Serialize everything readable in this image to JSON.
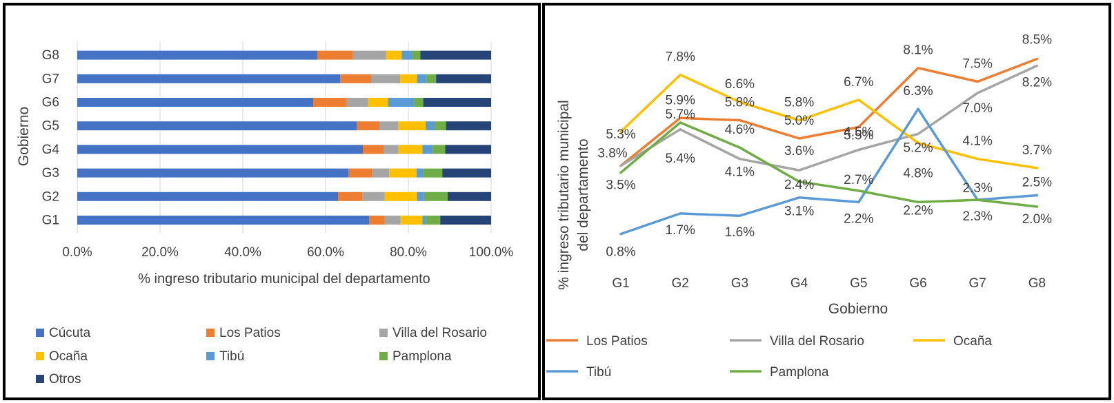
{
  "chart_data": [
    {
      "type": "bar",
      "orientation": "horizontal",
      "stacked": true,
      "categories": [
        "G1",
        "G2",
        "G3",
        "G4",
        "G5",
        "G6",
        "G7",
        "G8"
      ],
      "xlabel": "% ingreso tributario municipal del departamento",
      "ylabel": "Gobierno",
      "xlim": [
        0,
        100
      ],
      "xticks": [
        "0.0%",
        "20.0%",
        "40.0%",
        "60.0%",
        "80.0%",
        "100.0%"
      ],
      "legend_position": "bottom",
      "series": [
        {
          "name": "Cúcuta",
          "color": "#4472C4",
          "values": [
            70.5,
            63.0,
            65.5,
            69.0,
            67.5,
            57.0,
            63.5,
            58.0
          ]
        },
        {
          "name": "Los Patios",
          "color": "#ED7D31",
          "values": [
            3.8,
            5.9,
            5.8,
            5.0,
            5.5,
            8.1,
            7.5,
            8.5
          ]
        },
        {
          "name": "Villa del Rosario",
          "color": "#A5A5A5",
          "values": [
            3.8,
            5.4,
            4.1,
            3.6,
            4.5,
            5.2,
            7.0,
            8.2
          ]
        },
        {
          "name": "Ocaña",
          "color": "#FFC000",
          "values": [
            5.3,
            7.8,
            6.6,
            5.8,
            6.7,
            4.8,
            4.1,
            3.7
          ]
        },
        {
          "name": "Tibú",
          "color": "#5B9BD5",
          "values": [
            0.8,
            1.7,
            1.6,
            2.4,
            2.2,
            6.3,
            2.3,
            2.5
          ]
        },
        {
          "name": "Pamplona",
          "color": "#70AD47",
          "values": [
            3.5,
            5.7,
            4.6,
            3.1,
            2.7,
            2.2,
            2.3,
            2.0
          ]
        },
        {
          "name": "Otros",
          "color": "#264478",
          "values": [
            12.3,
            10.5,
            11.8,
            11.1,
            10.9,
            16.4,
            13.3,
            17.1
          ]
        }
      ]
    },
    {
      "type": "line",
      "x": [
        "G1",
        "G2",
        "G3",
        "G4",
        "G5",
        "G6",
        "G7",
        "G8"
      ],
      "xlabel": "Gobierno",
      "ylabel": "% ingreso tributario municipal del departamento",
      "ylim": [
        0,
        9
      ],
      "legend_position": "bottom",
      "series": [
        {
          "name": "Los Patios",
          "color": "#ED7D31",
          "values": [
            3.8,
            5.9,
            5.8,
            5.0,
            5.5,
            8.1,
            7.5,
            8.5
          ],
          "labels": [
            "",
            "5.9%",
            "5.8%",
            "5.0%",
            "5.5%",
            "8.1%",
            "7.5%",
            "8.5%"
          ]
        },
        {
          "name": "Villa del Rosario",
          "color": "#A5A5A5",
          "values": [
            3.8,
            5.4,
            4.1,
            3.6,
            4.5,
            5.2,
            7.0,
            8.2
          ],
          "labels": [
            "3.8%",
            "5.4%",
            "4.1%",
            "3.6%",
            "4.5%",
            "5.2%",
            "7.0%",
            "8.2%"
          ]
        },
        {
          "name": "Ocaña",
          "color": "#FFC000",
          "values": [
            5.3,
            7.8,
            6.6,
            5.8,
            6.7,
            4.8,
            4.1,
            3.7
          ],
          "labels": [
            "5.3%",
            "7.8%",
            "6.6%",
            "5.8%",
            "6.7%",
            "4.8%",
            "4.1%",
            "3.7%"
          ]
        },
        {
          "name": "Tibú",
          "color": "#5B9BD5",
          "values": [
            0.8,
            1.7,
            1.6,
            2.4,
            2.2,
            6.3,
            2.3,
            2.5
          ],
          "labels": [
            "0.8%",
            "1.7%",
            "1.6%",
            "2.4%",
            "2.2%",
            "6.3%",
            "2.3%",
            "2.5%"
          ]
        },
        {
          "name": "Pamplona",
          "color": "#70AD47",
          "values": [
            3.5,
            5.7,
            4.6,
            3.1,
            2.7,
            2.2,
            2.3,
            2.0
          ],
          "labels": [
            "3.5%",
            "5.7%",
            "4.6%",
            "3.1%",
            "2.7%",
            "2.2%",
            "2.3%",
            "2.0%"
          ]
        }
      ]
    }
  ]
}
